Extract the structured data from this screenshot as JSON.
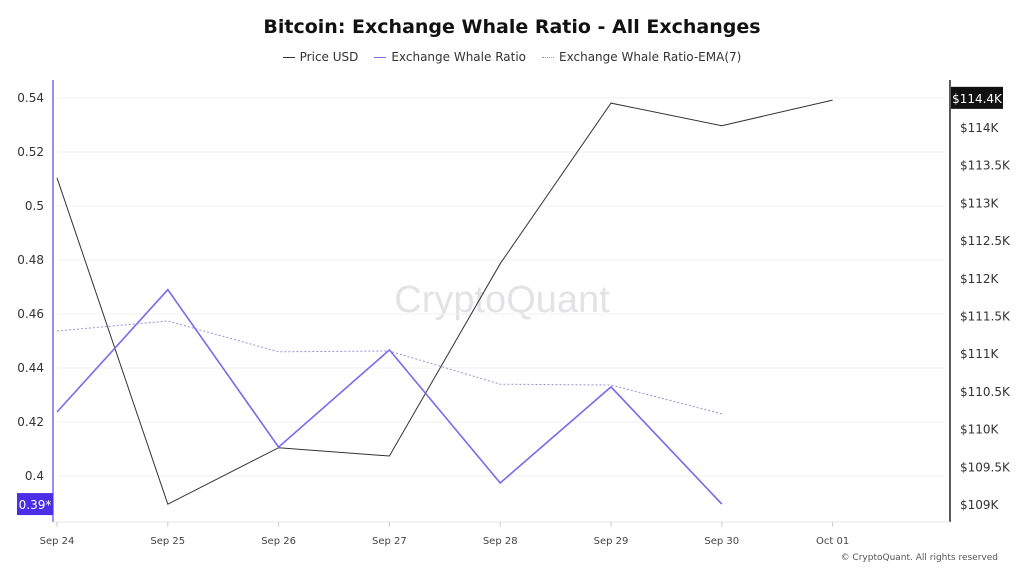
{
  "chart_data": {
    "type": "line",
    "title": "Bitcoin: Exchange Whale Ratio - All Exchanges",
    "watermark": "CryptoQuant",
    "copyright": "© CryptoQuant. All rights reserved",
    "categories": [
      "Sep 24",
      "Sep 25",
      "Sep 26",
      "Sep 27",
      "Sep 28",
      "Sep 29",
      "Sep 30",
      "Oct 01"
    ],
    "series": [
      {
        "name": "Price USD",
        "axis": "right",
        "color": "#333333",
        "values": [
          113340,
          109010,
          109760,
          109650,
          112200,
          114330,
          114030,
          114370
        ]
      },
      {
        "name": "Exchange Whale Ratio",
        "axis": "left",
        "color": "#7b68ee",
        "values": [
          0.4237,
          0.469,
          0.4107,
          0.4467,
          0.3974,
          0.433,
          0.3896,
          null
        ]
      },
      {
        "name": "Exchange Whale Ratio-EMA(7)",
        "axis": "left",
        "color": "#9a90d8",
        "dashed": true,
        "values": [
          0.4537,
          0.4574,
          0.446,
          0.4463,
          0.434,
          0.4337,
          0.423,
          null
        ]
      }
    ],
    "left_axis": {
      "ticks": [
        "0.54",
        "0.52",
        "0.5",
        "0.48",
        "0.46",
        "0.44",
        "0.42",
        "0.4"
      ],
      "tick_values": [
        0.54,
        0.52,
        0.5,
        0.48,
        0.46,
        0.44,
        0.42,
        0.4
      ],
      "current_label": "0.39*",
      "current_value": 0.3896
    },
    "right_axis": {
      "ticks": [
        "$114K",
        "$113.5K",
        "$113K",
        "$112.5K",
        "$112K",
        "$111.5K",
        "$111K",
        "$110.5K",
        "$110K",
        "$109.5K",
        "$109K"
      ],
      "tick_values": [
        114000,
        113500,
        113000,
        112500,
        112000,
        111500,
        111000,
        110500,
        110000,
        109500,
        109000
      ],
      "current_label": "$114.4K",
      "current_value": 114400
    },
    "grid": true,
    "legend_position": "top-center"
  }
}
